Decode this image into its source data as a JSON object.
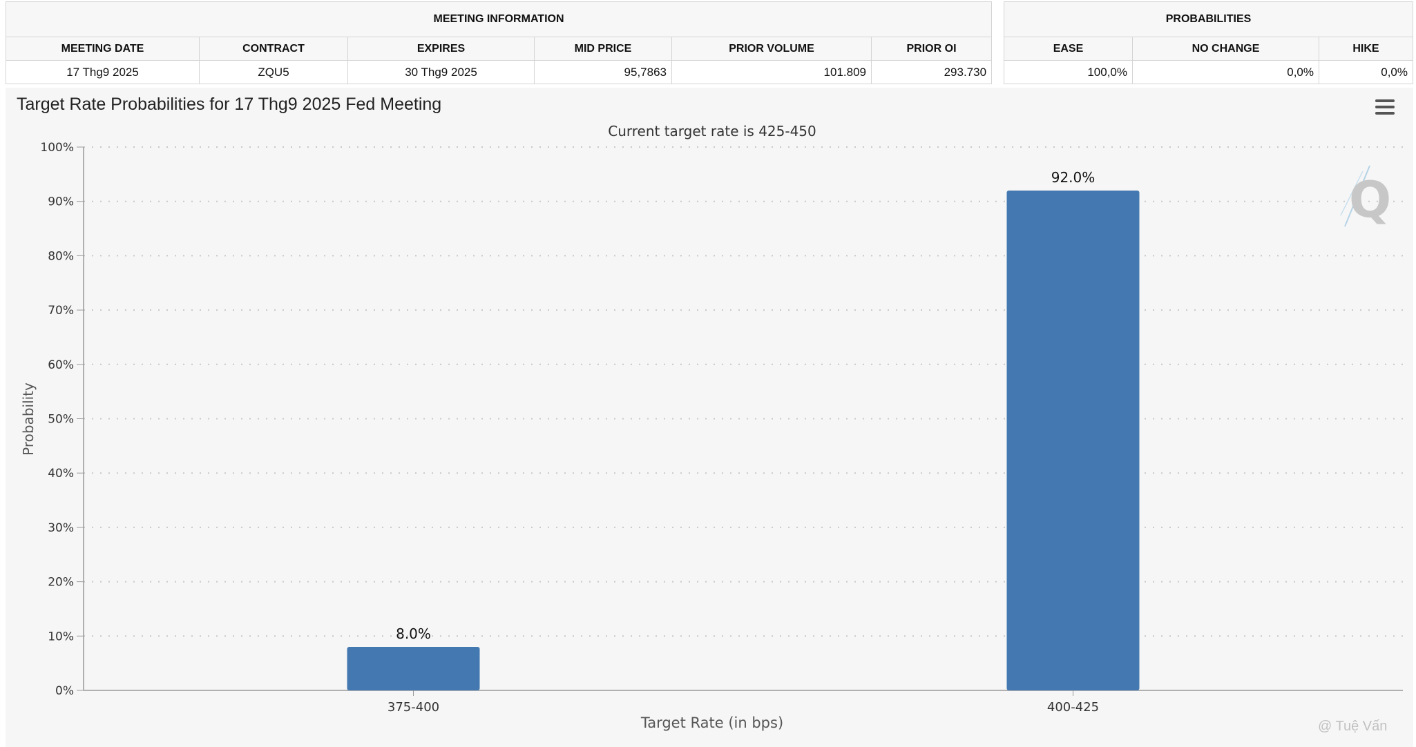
{
  "meeting_info": {
    "heading": "MEETING INFORMATION",
    "columns": [
      "MEETING DATE",
      "CONTRACT",
      "EXPIRES",
      "MID PRICE",
      "PRIOR VOLUME",
      "PRIOR OI"
    ],
    "row": [
      "17 Thg9 2025",
      "ZQU5",
      "30 Thg9 2025",
      "95,7863",
      "101.809",
      "293.730"
    ]
  },
  "probabilities": {
    "heading": "PROBABILITIES",
    "columns": [
      "EASE",
      "NO CHANGE",
      "HIKE"
    ],
    "row": [
      "100,0%",
      "0,0%",
      "0,0%"
    ]
  },
  "chart_data": {
    "type": "bar",
    "title": "Target Rate Probabilities for 17 Thg9 2025 Fed Meeting",
    "subtitle": "Current target rate is 425-450",
    "xlabel": "Target Rate (in bps)",
    "ylabel": "Probability",
    "categories": [
      "375-400",
      "400-425"
    ],
    "values": [
      8.0,
      92.0
    ],
    "data_labels": [
      "8.0%",
      "92.0%"
    ],
    "ylim": [
      0,
      100
    ],
    "yticks": [
      "0%",
      "10%",
      "20%",
      "30%",
      "40%",
      "50%",
      "60%",
      "70%",
      "80%",
      "90%",
      "100%"
    ],
    "grid": true,
    "bar_color": "#4379b0"
  },
  "watermark": "@ Tuệ Vấn"
}
